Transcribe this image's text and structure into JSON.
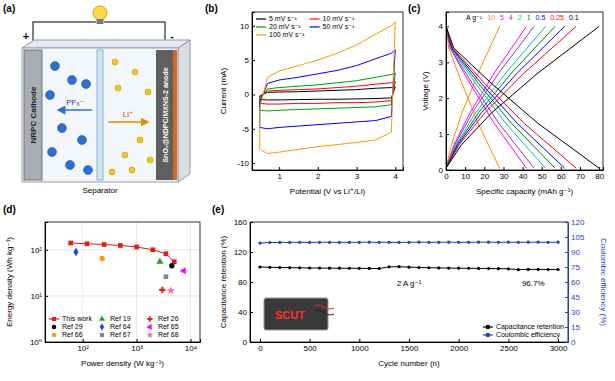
{
  "diagram": {
    "title": "(a)",
    "cathode": "NRPC Cathode",
    "anode": "SnO₂@NDPC/MXNS-2 anode",
    "separator": "Separator",
    "anion": "PF₆⁻",
    "cation": "Li⁺",
    "positive": "+",
    "negative": "-"
  },
  "chart_data": [
    {
      "type": "line",
      "title": "(b)",
      "x_label": "Potential (V vs Li⁺/Li)",
      "y_label": "Current (mA)",
      "x": [
        0.5,
        0.7,
        1,
        1.5,
        2,
        2.5,
        3,
        3.5,
        3.9,
        4,
        3.9,
        3.5,
        3,
        2.5,
        2,
        1.5,
        1,
        0.7,
        0.5,
        0.5
      ],
      "xlim": [
        0.3,
        4.2
      ],
      "xticks": [
        1,
        2,
        3,
        4
      ],
      "ylim": [
        -11,
        12
      ],
      "yticks": [
        -10,
        -5,
        0,
        5,
        10
      ],
      "legend": "top-left",
      "series": [
        {
          "name": "5 mV s⁻¹",
          "color": "#000000",
          "values": [
            -0.2,
            0.3,
            0.35,
            0.4,
            0.5,
            0.6,
            0.7,
            0.9,
            1,
            1.1,
            -0.5,
            -0.6,
            -0.65,
            -0.7,
            -0.7,
            -0.75,
            -0.8,
            -0.8,
            -0.75,
            -0.2
          ]
        },
        {
          "name": "10 mV s⁻¹",
          "color": "#ff0000",
          "values": [
            -0.3,
            0.5,
            0.6,
            0.7,
            0.8,
            1,
            1.2,
            1.5,
            1.7,
            1.9,
            -0.9,
            -1.1,
            -1.2,
            -1.2,
            -1.3,
            -1.3,
            -1.4,
            -1.4,
            -1.3,
            -0.3
          ]
        },
        {
          "name": "20 mV s⁻¹",
          "color": "#00a000",
          "values": [
            -0.6,
            0.8,
            1,
            1.2,
            1.4,
            1.7,
            2,
            2.5,
            2.9,
            3.1,
            -1.5,
            -1.8,
            -1.9,
            -2,
            -2.1,
            -2.2,
            -2.3,
            -2.4,
            -2.3,
            -0.6
          ]
        },
        {
          "name": "50 mV s⁻¹",
          "color": "#0000ff",
          "values": [
            -1.2,
            1.6,
            2.1,
            2.5,
            3,
            3.5,
            4.2,
            5.2,
            6,
            6.5,
            -3.2,
            -3.8,
            -4,
            -4.2,
            -4.4,
            -4.6,
            -4.8,
            -5,
            -4.8,
            -1.2
          ]
        },
        {
          "name": "100 mV s⁻¹",
          "color": "#ff9900",
          "values": [
            -2,
            2.5,
            3.4,
            4.2,
            5,
            6,
            7.2,
            8.8,
            10,
            10.6,
            -5.5,
            -6.6,
            -7,
            -7.3,
            -7.6,
            -8,
            -8.4,
            -8.6,
            -8,
            -2
          ]
        }
      ]
    },
    {
      "type": "line",
      "title": "(c)",
      "x_label": "Specific capacity (mAh g⁻¹)",
      "y_label": "Voltage (V)",
      "xlim": [
        0,
        82
      ],
      "xticks": [
        0,
        10,
        20,
        30,
        40,
        50,
        60,
        70,
        80
      ],
      "ylim": [
        0,
        4.4
      ],
      "yticks": [
        0,
        1,
        2,
        3,
        4
      ],
      "legend": "top",
      "annotations": [
        {
          "text": "A g⁻¹"
        }
      ],
      "series": [
        {
          "name": "10",
          "color": "#ff8c00",
          "x": [
            0,
            2.8,
            8.4,
            16.8,
            28,
            null,
            0,
            1.4,
            8.4,
            16.8,
            28
          ],
          "values": [
            0.05,
            0.7,
            1.6,
            2.7,
            4.0,
            null,
            4.0,
            3.4,
            2.4,
            1.3,
            0.05
          ]
        },
        {
          "name": "5",
          "color": "#ff00ff",
          "x": [
            0,
            4.2,
            12.6,
            25.2,
            42,
            null,
            0,
            2.1,
            12.6,
            25.2,
            42
          ],
          "values": [
            0.05,
            0.7,
            1.6,
            2.7,
            4.0,
            null,
            4.0,
            3.4,
            2.4,
            1.3,
            0.05
          ]
        },
        {
          "name": "4",
          "color": "#9932cc",
          "x": [
            0,
            4.6,
            13.8,
            27.6,
            46,
            null,
            0,
            2.3,
            13.8,
            27.6,
            46
          ],
          "values": [
            0.05,
            0.7,
            1.6,
            2.7,
            4.0,
            null,
            4.0,
            3.4,
            2.4,
            1.3,
            0.05
          ]
        },
        {
          "name": "2",
          "color": "#00bfbf",
          "x": [
            0,
            5.2,
            15.6,
            31.2,
            52,
            null,
            0,
            2.6,
            15.6,
            31.2,
            52
          ],
          "values": [
            0.05,
            0.7,
            1.6,
            2.7,
            4.0,
            null,
            4.0,
            3.4,
            2.4,
            1.3,
            0.05
          ]
        },
        {
          "name": "1",
          "color": "#008000",
          "x": [
            0,
            5.7,
            17.1,
            34.2,
            57,
            null,
            0,
            2.85,
            17.1,
            34.2,
            57
          ],
          "values": [
            0.05,
            0.7,
            1.6,
            2.7,
            4.0,
            null,
            4.0,
            3.4,
            2.4,
            1.3,
            0.05
          ]
        },
        {
          "name": "0.5",
          "color": "#0000ff",
          "x": [
            0,
            6.2,
            18.6,
            37.2,
            62,
            null,
            0,
            3.1,
            18.6,
            37.2,
            62
          ],
          "values": [
            0.05,
            0.7,
            1.6,
            2.7,
            4.0,
            null,
            4.0,
            3.4,
            2.4,
            1.3,
            0.05
          ]
        },
        {
          "name": "0.25",
          "color": "#ff0000",
          "x": [
            0,
            6.8,
            20.4,
            40.8,
            68,
            null,
            0,
            3.4,
            20.4,
            40.8,
            68
          ],
          "values": [
            0.05,
            0.7,
            1.6,
            2.7,
            4.0,
            null,
            4.0,
            3.4,
            2.4,
            1.3,
            0.05
          ]
        },
        {
          "name": "0.1",
          "color": "#000000",
          "x": [
            0,
            8,
            24,
            48,
            80,
            null,
            0,
            4,
            24,
            48,
            80
          ],
          "values": [
            0.05,
            0.7,
            1.6,
            2.7,
            4.0,
            null,
            4.0,
            3.4,
            2.4,
            1.3,
            0.05
          ]
        }
      ]
    },
    {
      "type": "line",
      "title": "(d)",
      "x_label": "Power density (W kg⁻¹)",
      "y_label": "Energy density (Wh kg⁻¹)",
      "log": true,
      "grid": true,
      "xlim": [
        20,
        15000
      ],
      "xticks": [
        {
          "value": 100,
          "label": "10²"
        },
        {
          "value": 1000,
          "label": "10³"
        },
        {
          "value": 10000,
          "label": "10⁴"
        }
      ],
      "ylim": [
        1,
        400
      ],
      "yticks": [
        {
          "value": 1,
          "label": "10⁰"
        },
        {
          "value": 10,
          "label": "10¹"
        },
        {
          "value": 100,
          "label": "10²"
        }
      ],
      "legend": "bottom-left",
      "series": [
        {
          "name": "This work",
          "type": "line",
          "color": "#e31a1c",
          "marker": "square",
          "x": [
            60,
            120,
            250,
            500,
            1000,
            2000,
            3500,
            5000
          ],
          "values": [
            140,
            135,
            130,
            124,
            115,
            100,
            82,
            55
          ]
        },
        {
          "name": "Ref 19",
          "type": "scatter",
          "color": "#2ca02c",
          "marker": "triangle",
          "x": [
            2700
          ],
          "values": [
            55
          ]
        },
        {
          "name": "Ref 26",
          "type": "scatter",
          "color": "#d62728",
          "marker": "cross",
          "x": [
            3000
          ],
          "values": [
            13.5
          ]
        },
        {
          "name": "Ref 29",
          "type": "scatter",
          "color": "#000000",
          "marker": "circle",
          "x": [
            4500
          ],
          "values": [
            45
          ]
        },
        {
          "name": "Ref 64",
          "type": "scatter",
          "color": "#1f3fff",
          "marker": "diamond",
          "x": [
            75
          ],
          "values": [
            90
          ]
        },
        {
          "name": "Ref 65",
          "type": "scatter",
          "color": "#ff00ff",
          "marker": "triangle-left",
          "x": [
            7500
          ],
          "values": [
            35
          ]
        },
        {
          "name": "Ref 66",
          "type": "scatter",
          "color": "#ff9900",
          "marker": "circle",
          "x": [
            230
          ],
          "values": [
            65
          ]
        },
        {
          "name": "Ref 67",
          "type": "scatter",
          "color": "#7f7f9f",
          "marker": "square",
          "x": [
            3500
          ],
          "values": [
            26
          ]
        },
        {
          "name": "Ref 68",
          "type": "scatter",
          "color": "#ff66aa",
          "marker": "star",
          "x": [
            4300
          ],
          "values": [
            13
          ]
        }
      ]
    },
    {
      "type": "line",
      "title": "(e)",
      "x_label": "Cycle number (n)",
      "y_label": "Capacitance retention (%)",
      "y2_label": "Coulombic efficiency (%)",
      "xlim": [
        -100,
        3100
      ],
      "xticks": [
        0,
        500,
        1000,
        1500,
        2000,
        2500,
        3000
      ],
      "ylim": [
        0,
        160
      ],
      "yticks": [
        0,
        40,
        80,
        120,
        160
      ],
      "y2lim": [
        0,
        120
      ],
      "y2ticks": [
        0,
        15,
        30,
        45,
        60,
        75,
        90,
        105,
        120
      ],
      "legend": "bottom-right",
      "annotations": [
        {
          "text": "2 A g⁻¹",
          "x": 1500,
          "y": 75
        },
        {
          "text": "96.7%",
          "x": 2750,
          "y": 75
        }
      ],
      "inset": "SCUT",
      "x": [
        0,
        100,
        200,
        300,
        400,
        500,
        600,
        700,
        800,
        900,
        1000,
        1100,
        1200,
        1300,
        1400,
        1500,
        1600,
        1700,
        1800,
        1900,
        2000,
        2100,
        2200,
        2300,
        2400,
        2500,
        2600,
        2700,
        2800,
        2900,
        3000
      ],
      "series": [
        {
          "name": "Capacitance retention",
          "color": "#000000",
          "marker": "circle",
          "values": [
            100,
            99.6,
            99.3,
            99.1,
            98.9,
            98.7,
            98.6,
            98.5,
            98.4,
            98.3,
            98.2,
            98.1,
            98.0,
            100.2,
            100.4,
            99.8,
            99.3,
            99.0,
            98.8,
            98.6,
            98.4,
            98.3,
            98.1,
            98.0,
            97.8,
            97.6,
            96.5,
            96.8,
            96.8,
            96.7,
            96.7
          ]
        },
        {
          "name": "Coulombic efficiency",
          "color": "#1f3fbf",
          "marker": "circle",
          "axis": "y2",
          "values": [
            98.9,
            99.5,
            99.6,
            99.6,
            99.7,
            99.6,
            99.7,
            99.7,
            99.6,
            99.7,
            99.7,
            99.8,
            99.7,
            99.7,
            99.6,
            99.7,
            99.8,
            99.7,
            99.7,
            99.8,
            99.7,
            99.7,
            99.8,
            99.8,
            99.7,
            99.8,
            99.7,
            99.8,
            99.8,
            99.7,
            99.8
          ]
        }
      ]
    }
  ]
}
